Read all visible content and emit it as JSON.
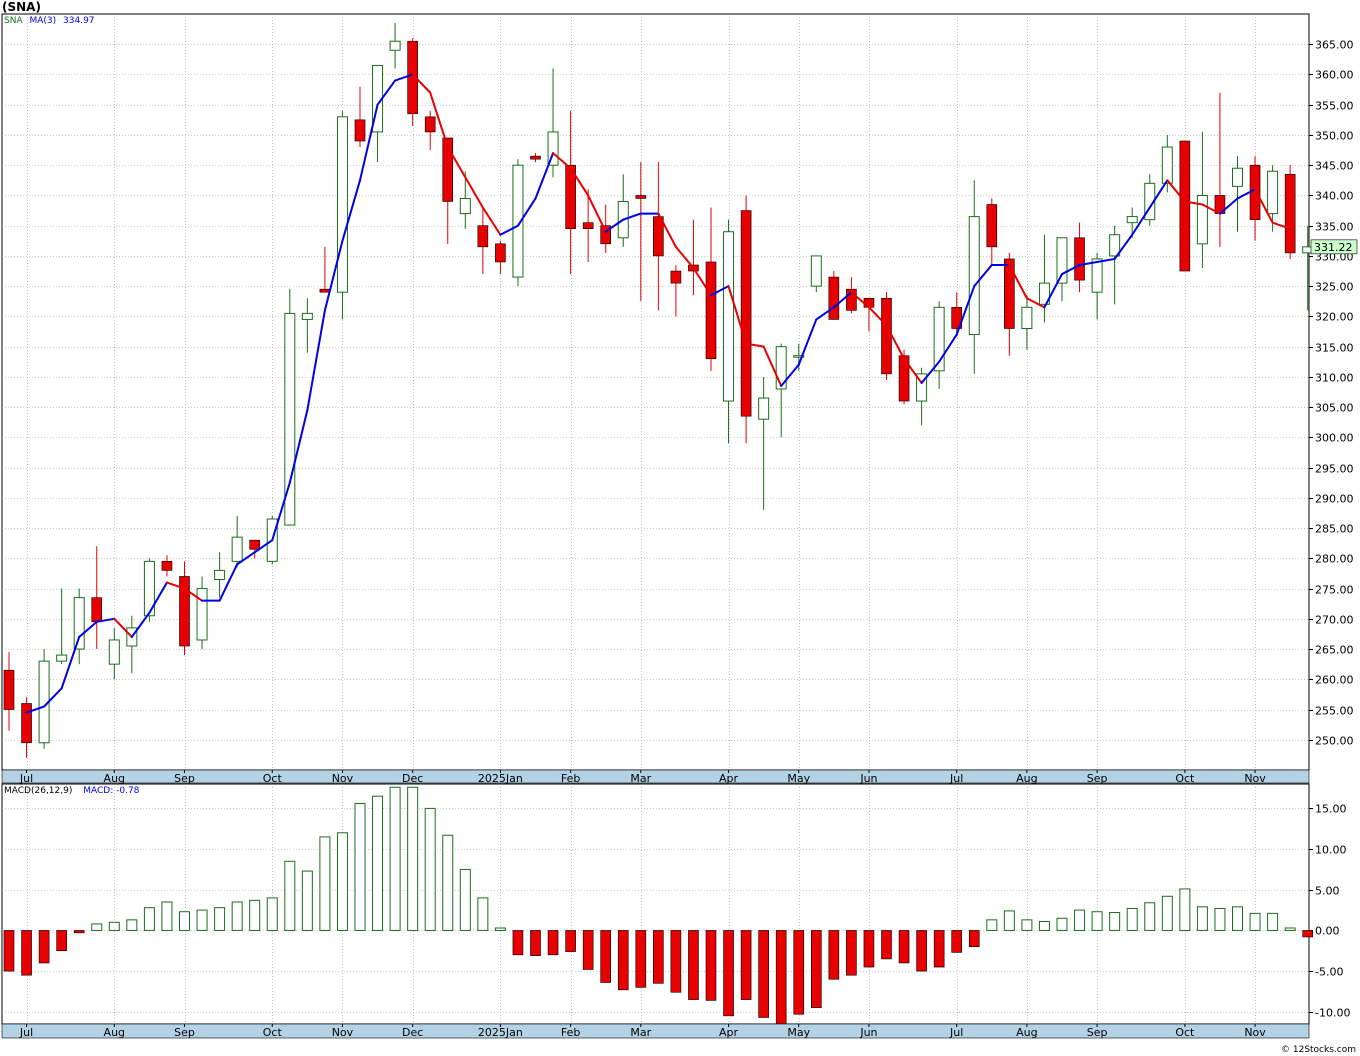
{
  "title": "(SNA)",
  "footer": "© 12Stocks.com",
  "price_legend": {
    "symbol": "SNA",
    "ma_label": "MA(3)",
    "ma_value": "334.97"
  },
  "macd_legend": {
    "label": "MACD(26,12,9)",
    "value_label": "MACD: -0.78"
  },
  "colors": {
    "up_candle": "#1a6e1a",
    "down_candle": "#e60000",
    "ma_up": "#0000e6",
    "ma_down": "#e60000",
    "axis_band": "#b4d2e6",
    "grid": "#999999",
    "last_price_box": "#ccffcc"
  },
  "chart_data": [
    {
      "type": "candlestick",
      "title": "(SNA)",
      "y_range": [
        245,
        370
      ],
      "y_ticks": [
        250,
        255,
        260,
        265,
        270,
        275,
        280,
        285,
        290,
        295,
        300,
        305,
        310,
        315,
        320,
        325,
        330,
        335,
        340,
        345,
        350,
        355,
        360,
        365
      ],
      "y_tick_labels": [
        "250.00",
        "255.00",
        "260.00",
        "265.00",
        "270.00",
        "275.00",
        "280.00",
        "285.00",
        "290.00",
        "295.00",
        "300.00",
        "305.00",
        "310.00",
        "315.00",
        "320.00",
        "325.00",
        "330.00",
        "335.00",
        "340.00",
        "345.00",
        "350.00",
        "355.00",
        "360.00",
        "365.00"
      ],
      "x_ticks": [
        {
          "label": "Jul",
          "index": 1
        },
        {
          "label": "Aug",
          "index": 6
        },
        {
          "label": "Sep",
          "index": 10
        },
        {
          "label": "Oct",
          "index": 15
        },
        {
          "label": "Nov",
          "index": 19
        },
        {
          "label": "Dec",
          "index": 23
        },
        {
          "label": "2025Jan",
          "index": 28
        },
        {
          "label": "Feb",
          "index": 32
        },
        {
          "label": "Mar",
          "index": 36
        },
        {
          "label": "Apr",
          "index": 41
        },
        {
          "label": "May",
          "index": 45
        },
        {
          "label": "Jun",
          "index": 49
        },
        {
          "label": "Jul",
          "index": 54
        },
        {
          "label": "Aug",
          "index": 58
        },
        {
          "label": "Sep",
          "index": 62
        },
        {
          "label": "Oct",
          "index": 67
        },
        {
          "label": "Nov",
          "index": 71
        }
      ],
      "last_price_label": "331.22",
      "ohlc": [
        [
          261.5,
          264.5,
          251.5,
          255
        ],
        [
          256,
          257,
          247,
          249.5
        ],
        [
          249.5,
          265,
          248.5,
          263
        ],
        [
          263,
          275,
          262.5,
          264
        ],
        [
          265,
          275,
          262.5,
          273.5
        ],
        [
          273.5,
          282,
          265,
          269.5
        ],
        [
          262.5,
          268.5,
          260,
          266.5
        ],
        [
          265.5,
          270.5,
          261,
          268.5
        ],
        [
          270.5,
          280,
          269.5,
          279.5
        ],
        [
          279.5,
          280.5,
          277,
          278
        ],
        [
          277,
          279.5,
          264,
          265.5
        ],
        [
          266.5,
          277,
          265,
          275
        ],
        [
          276.5,
          281,
          273.5,
          278
        ],
        [
          279.5,
          287,
          278.5,
          283.5
        ],
        [
          283,
          283,
          280,
          281.5
        ],
        [
          279.5,
          287,
          279,
          286.5
        ],
        [
          285.5,
          324.5,
          285.5,
          320.5
        ],
        [
          319.5,
          323,
          314,
          320.5
        ],
        [
          324.5,
          331.5,
          324,
          324
        ],
        [
          324,
          354,
          319.5,
          353
        ],
        [
          352.5,
          358,
          348,
          349
        ],
        [
          350.5,
          361,
          345.5,
          361.5
        ],
        [
          364,
          368.5,
          361,
          365.5
        ],
        [
          365.5,
          366,
          351.5,
          353.5
        ],
        [
          353,
          354,
          347.5,
          350.5
        ],
        [
          349.5,
          349.5,
          332,
          339
        ],
        [
          337,
          344,
          334.5,
          339.5
        ],
        [
          335,
          338,
          327,
          331.5
        ],
        [
          332,
          332.5,
          327,
          329
        ],
        [
          326.5,
          346,
          325,
          345
        ],
        [
          346.5,
          347,
          345.5,
          346
        ],
        [
          345,
          361,
          343,
          350.5
        ],
        [
          345,
          354,
          327,
          334.5
        ],
        [
          335.5,
          341,
          329,
          334.5
        ],
        [
          335,
          338.5,
          330.5,
          332
        ],
        [
          333,
          343.5,
          331.5,
          339
        ],
        [
          340,
          345.5,
          322.5,
          339.5
        ],
        [
          336.5,
          345.5,
          321,
          330
        ],
        [
          327.5,
          328.5,
          320,
          325.5
        ],
        [
          328.5,
          336,
          323.5,
          327.5
        ],
        [
          329,
          338,
          311,
          313
        ],
        [
          306,
          336,
          299,
          334
        ],
        [
          337.5,
          340,
          299,
          303.5
        ],
        [
          303,
          310,
          288,
          306.5
        ],
        [
          308,
          315.5,
          300,
          315
        ],
        [
          313.5,
          315.5,
          311,
          313.5
        ],
        [
          325,
          330,
          324,
          330
        ],
        [
          326.5,
          327.5,
          319.5,
          319.5
        ],
        [
          324.5,
          326.5,
          320.5,
          321
        ],
        [
          323,
          323,
          317.5,
          321.5
        ],
        [
          323,
          324,
          309.5,
          310.5
        ],
        [
          313.5,
          314.5,
          305.5,
          306
        ],
        [
          306,
          311.5,
          302,
          310.5
        ],
        [
          311,
          322.5,
          308,
          321.5
        ],
        [
          321.5,
          324,
          317,
          318
        ],
        [
          317,
          342.5,
          310.5,
          336.5
        ],
        [
          338.5,
          339.5,
          328.5,
          331.5
        ],
        [
          329.5,
          330.5,
          313.5,
          318
        ],
        [
          318,
          323.5,
          314.5,
          321.5
        ],
        [
          322,
          333.5,
          319,
          325.5
        ],
        [
          325.5,
          333,
          322.5,
          333
        ],
        [
          333,
          335.5,
          324,
          326
        ],
        [
          324,
          330.5,
          319.5,
          329.5
        ],
        [
          330,
          335,
          322,
          333.5
        ],
        [
          335.5,
          338,
          333,
          336.5
        ],
        [
          336,
          343.5,
          335,
          342
        ],
        [
          342,
          350,
          340.5,
          348
        ],
        [
          349,
          349,
          327.5,
          327.5
        ],
        [
          332,
          350.5,
          328,
          340
        ],
        [
          340,
          357,
          331.5,
          337
        ],
        [
          341.5,
          346.5,
          334,
          344.5
        ],
        [
          345,
          346.5,
          332.5,
          336
        ],
        [
          337,
          345,
          334,
          344
        ],
        [
          343.5,
          345,
          329.5,
          330.5
        ],
        [
          330.5,
          335,
          321,
          331.5
        ]
      ],
      "ma3": [
        null,
        254.5,
        255.5,
        258.5,
        267,
        269.5,
        270,
        267,
        271,
        276,
        275,
        273,
        273,
        279,
        281,
        283,
        292.5,
        304.5,
        321,
        332.5,
        342.5,
        355,
        359,
        360,
        357,
        348,
        343,
        338,
        333.5,
        335,
        339.5,
        347,
        344.5,
        340,
        334,
        336,
        337,
        337,
        331.5,
        328,
        323.5,
        325,
        315.5,
        315,
        308.5,
        312,
        319.5,
        321.5,
        324,
        321.5,
        318.5,
        313,
        309,
        312.5,
        317,
        325,
        328.5,
        328.5,
        323,
        321.5,
        327,
        328.5,
        329,
        329.5,
        333.5,
        338,
        342.5,
        339,
        338.5,
        337,
        339.5,
        341,
        335.5,
        334.5
      ]
    },
    {
      "type": "bar",
      "title": "MACD(26,12,9)",
      "y_range": [
        -11.5,
        18
      ],
      "y_ticks": [
        -10,
        -5,
        0,
        5,
        10,
        15
      ],
      "y_tick_labels": [
        "-10.00",
        "-5.00",
        "0.00",
        "5.00",
        "10.00",
        "15.00"
      ],
      "values": [
        -5,
        -5.5,
        -4,
        -2.5,
        -0.3,
        0.8,
        1,
        1.3,
        2.8,
        3.5,
        2.3,
        2.5,
        2.8,
        3.5,
        3.7,
        4,
        8.5,
        7.3,
        11.5,
        12,
        15.6,
        16.5,
        17.6,
        17.6,
        15,
        11.7,
        7.5,
        4,
        0.3,
        -3,
        -3.1,
        -3,
        -2.6,
        -4.8,
        -6.4,
        -7.3,
        -7,
        -6.5,
        -7.6,
        -8.5,
        -8.6,
        -10.5,
        -8.5,
        -10.7,
        -11.5,
        -10.3,
        -9.5,
        -6,
        -5.5,
        -4.5,
        -3.5,
        -4,
        -5,
        -4.5,
        -2.7,
        -2,
        1.3,
        2.4,
        1.3,
        1.1,
        1.5,
        2.5,
        2.3,
        2.2,
        2.7,
        3.4,
        4.2,
        5.1,
        2.9,
        2.7,
        2.9,
        2.1,
        2.1,
        0.3,
        -0.8
      ]
    }
  ]
}
